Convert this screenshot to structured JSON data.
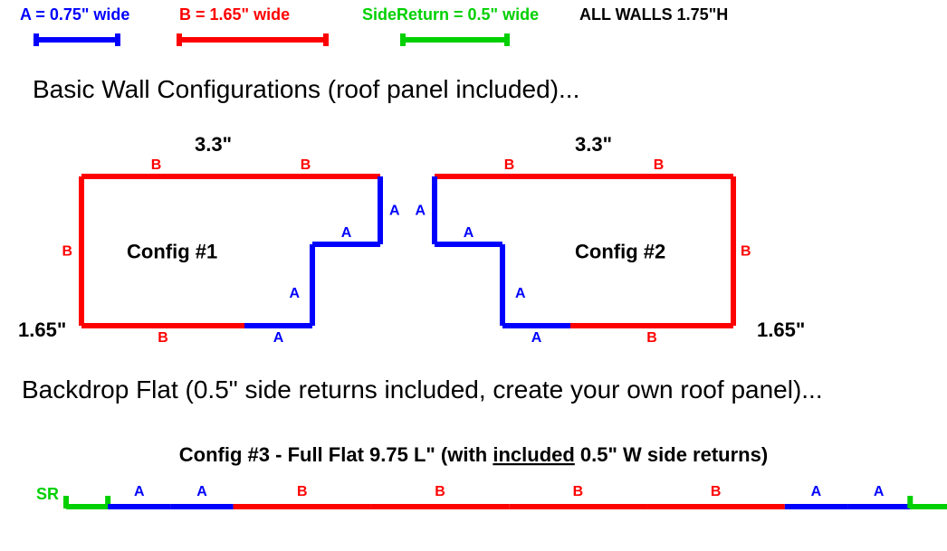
{
  "colors": {
    "blue": "#0000FF",
    "red": "#FF0000",
    "green": "#00D000",
    "black": "#000000"
  },
  "stroke": {
    "thick": 6,
    "thin": 4
  },
  "legend": {
    "a": {
      "label": "A = 0.75\" wide",
      "color": "#0000FF"
    },
    "b": {
      "label": "B = 1.65\" wide",
      "color": "#FF0000"
    },
    "sr": {
      "label": "SideReturn = 0.5\" wide",
      "color": "#00D000"
    },
    "walls": {
      "label": "ALL WALLS 1.75\"H",
      "color": "#000000"
    }
  },
  "heading1": "Basic Wall Configurations (roof panel included)...",
  "heading2": "Backdrop Flat (0.5\" side returns included, create your own roof panel)...",
  "config1": {
    "title": "Config #1",
    "width_label": "3.3\"",
    "height_label": "1.65\""
  },
  "config2": {
    "title": "Config #2",
    "width_label": "3.3\"",
    "height_label": "1.65\""
  },
  "config3": {
    "title": "Config #3 - Full Flat 9.75 L\" (with included 0.5\" W side returns)",
    "underline_word": "included"
  },
  "seg_labels": {
    "A": "A",
    "B": "B",
    "SR": "SR"
  },
  "font": {
    "legend": 18,
    "heading": 28,
    "dim": 22,
    "cfg_title": 22,
    "seg": 16,
    "cfg3_title": 22
  }
}
